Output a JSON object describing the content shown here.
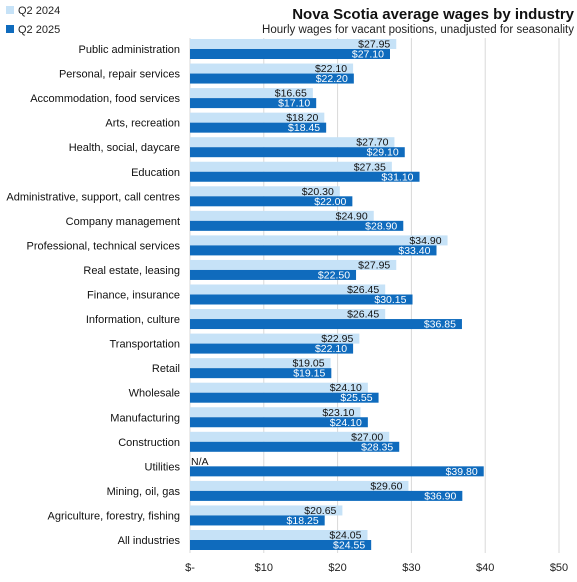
{
  "chart_data": {
    "type": "bar",
    "orientation": "horizontal",
    "title": "Nova Scotia average wages by industry",
    "subtitle": "Hourly wages for vacant positions, unadjusted for seasonality",
    "xlabel": "",
    "ylabel": "",
    "xlim": [
      0,
      50
    ],
    "x_ticks": [
      0,
      10,
      20,
      30,
      40,
      50
    ],
    "x_tick_labels": [
      "$-",
      "$10",
      "$20",
      "$30",
      "$40",
      "$50"
    ],
    "grid": true,
    "legend_position": "top-left",
    "categories": [
      "Public administration",
      "Personal, repair services",
      "Accommodation, food services",
      "Arts, recreation",
      "Health, social, daycare",
      "Education",
      "Administrative, support, call centres",
      "Company management",
      "Professional, technical services",
      "Real estate, leasing",
      "Finance, insurance",
      "Information, culture",
      "Transportation",
      "Retail",
      "Wholesale",
      "Manufacturing",
      "Construction",
      "Utilities",
      "Mining, oil, gas",
      "Agriculture, forestry, fishing",
      "All industries"
    ],
    "series": [
      {
        "name": "Q2 2024",
        "color": "#c6e2f7",
        "values": [
          27.95,
          22.1,
          16.65,
          18.2,
          27.7,
          27.35,
          20.3,
          24.9,
          34.9,
          27.95,
          26.45,
          26.45,
          22.95,
          19.05,
          24.1,
          23.1,
          27.0,
          null,
          29.6,
          20.65,
          24.05
        ],
        "labels": [
          "$27.95",
          "$22.10",
          "$16.65",
          "$18.20",
          "$27.70",
          "$27.35",
          "$20.30",
          "$24.90",
          "$34.90",
          "$27.95",
          "$26.45",
          "$26.45",
          "$22.95",
          "$19.05",
          "$24.10",
          "$23.10",
          "$27.00",
          "N/A",
          "$29.60",
          "$20.65",
          "$24.05"
        ]
      },
      {
        "name": "Q2 2025",
        "color": "#0f6bbd",
        "values": [
          27.1,
          22.2,
          17.1,
          18.45,
          29.1,
          31.1,
          22.0,
          28.9,
          33.4,
          22.5,
          30.15,
          36.85,
          22.1,
          19.15,
          25.55,
          24.1,
          28.35,
          39.8,
          36.9,
          18.25,
          24.55
        ],
        "labels": [
          "$27.10",
          "$22.20",
          "$17.10",
          "$18.45",
          "$29.10",
          "$31.10",
          "$22.00",
          "$28.90",
          "$33.40",
          "$22.50",
          "$30.15",
          "$36.85",
          "$22.10",
          "$19.15",
          "$25.55",
          "$24.10",
          "$28.35",
          "$39.80",
          "$36.90",
          "$18.25",
          "$24.55"
        ]
      }
    ]
  }
}
